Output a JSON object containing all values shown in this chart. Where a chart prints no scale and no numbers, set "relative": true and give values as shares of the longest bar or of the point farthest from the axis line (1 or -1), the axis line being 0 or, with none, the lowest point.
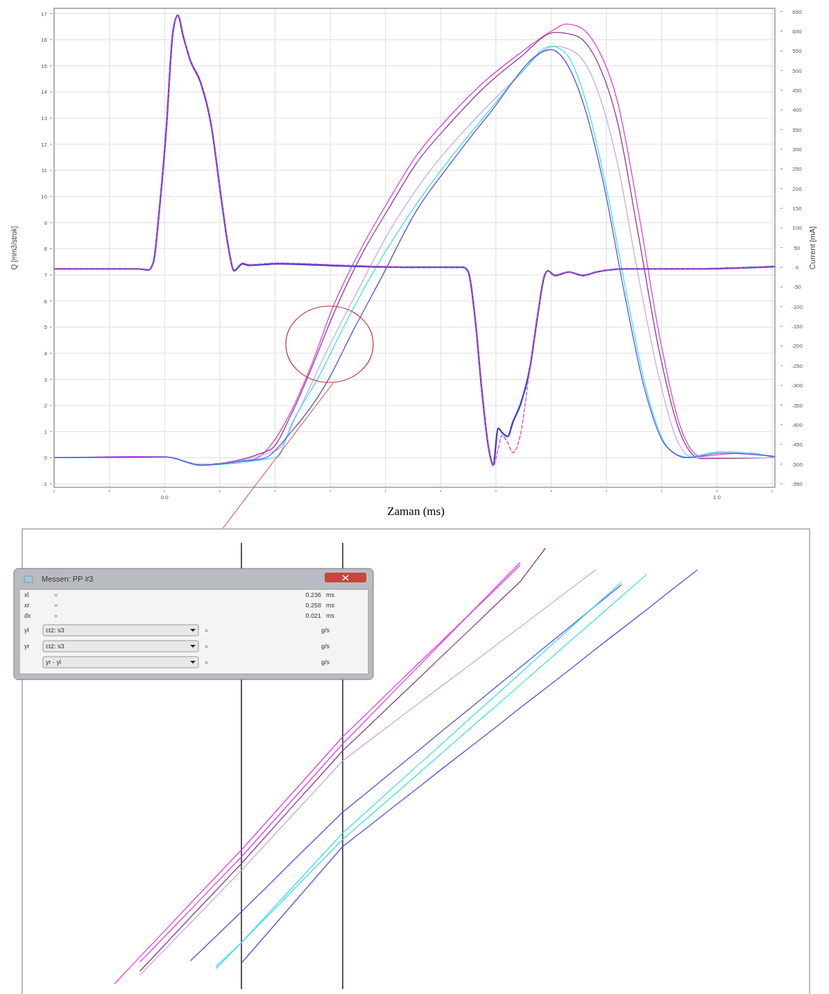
{
  "chart_data": [
    {
      "type": "line",
      "xlabel": "Zaman (ms)",
      "ylabel": "Q [mm3/strok]",
      "y2label": "Current [mA]",
      "xlim": [
        -0.2,
        1.105
      ],
      "ylim": [
        -1.13,
        17.2
      ],
      "y2lim": [
        -559,
        658
      ],
      "xticks": [
        {
          "value": -0.2,
          "label": null
        },
        {
          "value": -0.1,
          "label": null
        },
        {
          "value": 0,
          "label": "0.0"
        },
        {
          "value": 0.1,
          "label": null
        },
        {
          "value": 0.2,
          "label": null
        },
        {
          "value": 0.3,
          "label": null
        },
        {
          "value": 0.4,
          "label": null
        },
        {
          "value": 0.5,
          "label": null
        },
        {
          "value": 0.6,
          "label": null
        },
        {
          "value": 0.7,
          "label": null
        },
        {
          "value": 0.8,
          "label": null
        },
        {
          "value": 0.9,
          "label": null
        },
        {
          "value": 1,
          "label": "1.0"
        },
        {
          "value": 1.1,
          "label": null
        }
      ],
      "yticks": [
        -1,
        0,
        1,
        2,
        3,
        4,
        5,
        6,
        7,
        8,
        9,
        10,
        11,
        12,
        13,
        14,
        15,
        16,
        17
      ],
      "y2ticks": [
        -550,
        -500,
        -450,
        -400,
        -350,
        -300,
        -250,
        -200,
        -150,
        -100,
        -50,
        0,
        50,
        100,
        150,
        200,
        250,
        300,
        350,
        400,
        450,
        500,
        550,
        600,
        650
      ],
      "grid": true,
      "series": [
        {
          "color": "#e040e0",
          "x": [
            -0.2,
            -0.048,
            0.003,
            0.065,
            0.128,
            0.166,
            0.191,
            0.229,
            0.267,
            0.304,
            0.355,
            0.405,
            0.455,
            0.518,
            0.581,
            0.644,
            0.707,
            0.726,
            0.745,
            0.782,
            0.82,
            0.858,
            0.896,
            0.933,
            0.971,
            1.009,
            1.059,
            1.105
          ],
          "values": [
            0,
            0.05,
            0.03,
            -0.26,
            -0.16,
            -0.03,
            0.45,
            1.77,
            3.61,
            5.73,
            7.97,
            9.82,
            11.53,
            13.11,
            14.43,
            15.49,
            16.41,
            16.6,
            16.54,
            15.75,
            13.64,
            9.42,
            4.67,
            1.24,
            0.05,
            0.13,
            0.18,
            0
          ]
        },
        {
          "color": "#8b3a8b",
          "x": [
            -0.2,
            0.003,
            0.065,
            0.191,
            0.229,
            0.267,
            0.305,
            0.355,
            0.406,
            0.456,
            0.519,
            0.581,
            0.644,
            0.707,
            0.745,
            0.782,
            0.82,
            0.857,
            0.895,
            0.933,
            0.97,
            1.105
          ],
          "values": [
            0,
            0.03,
            -0.26,
            0.3,
            1.64,
            3.48,
            5.46,
            7.7,
            9.55,
            11.27,
            12.85,
            14.22,
            15.33,
            16.28,
            16.15,
            15.22,
            12.85,
            8.63,
            4.14,
            0.98,
            -0.03,
            0
          ]
        },
        {
          "color": "#c8a8e8",
          "x": [
            -0.2,
            0.003,
            0.065,
            0.204,
            0.242,
            0.292,
            0.343,
            0.406,
            0.481,
            0.557,
            0.632,
            0.707,
            0.745,
            0.782,
            0.82,
            0.857,
            0.895,
            0.933,
            0.958,
            1.105
          ],
          "values": [
            0,
            0.03,
            -0.26,
            0.3,
            1.77,
            4.01,
            6.12,
            8.63,
            11,
            12.85,
            14.43,
            15.75,
            15.49,
            14.17,
            11.27,
            7.04,
            3.09,
            0.45,
            0,
            0
          ]
        },
        {
          "color": "#40e0e8",
          "x": [
            -0.2,
            0.003,
            0.065,
            0.204,
            0.229,
            0.279,
            0.329,
            0.38,
            0.455,
            0.518,
            0.581,
            0.644,
            0.7,
            0.726,
            0.763,
            0.801,
            0.839,
            0.876,
            0.914,
            0.946,
            1.008,
            1.105
          ],
          "values": [
            0,
            0.03,
            -0.28,
            0.02,
            1.24,
            3.09,
            5.2,
            7.18,
            9.68,
            11.48,
            13.11,
            14.7,
            15.75,
            15.49,
            13.64,
            10.21,
            5.99,
            2.3,
            0.32,
            0.03,
            0.24,
            0.05
          ]
        },
        {
          "color": "#5050e0",
          "x": [
            -0.2,
            0.003,
            0.065,
            0.141,
            0.179,
            0.229,
            0.292,
            0.343,
            0.393,
            0.455,
            0.518,
            0.581,
            0.7,
            0.719,
            0.757,
            0.795,
            0.833,
            0.87,
            0.908,
            0.946,
            1.008,
            1.105
          ],
          "values": [
            0,
            0.03,
            -0.29,
            -0.13,
            -0.03,
            0.98,
            2.82,
            4.93,
            6.91,
            9.42,
            11.27,
            12.98,
            15.62,
            15.36,
            13.64,
            10.47,
            6.25,
            2.56,
            0.45,
            0,
            0.18,
            0.05
          ]
        },
        {
          "color": "#4040d0",
          "axis": "y2",
          "x": [
            -0.2,
            -0.048,
            -0.029,
            -0.02,
            -0.01,
            0.003,
            0.015,
            0.024,
            0.034,
            0.047,
            0.065,
            0.084,
            0.103,
            0.116,
            0.126,
            0.141,
            0.153,
            0.204,
            0.33,
            0.455,
            0.541,
            0.55,
            0.562,
            0.575,
            0.587,
            0.595,
            0.604,
            0.611,
            0.621,
            0.631,
            0.644,
            0.662,
            0.675,
            0.688,
            0.694,
            0.707,
            0.732,
            0.757,
            0.782,
            0.833,
            0.958,
            1.105
          ],
          "values": [
            -4,
            -4,
            -7,
            14,
            138,
            349,
            596,
            640,
            586,
            524,
            471,
            365,
            171,
            47,
            -9,
            9,
            5,
            9,
            3,
            0,
            0,
            -12,
            -127,
            -321,
            -462,
            -501,
            -409,
            -420,
            -430,
            -392,
            -350,
            -251,
            -127,
            -21,
            -9,
            -21,
            -12,
            -21,
            -12,
            -4,
            -4,
            2
          ]
        },
        {
          "color": "#e040c0",
          "axis": "y2",
          "line_style": "dashed",
          "x": [
            -0.2,
            -0.048,
            -0.029,
            -0.02,
            -0.01,
            0.003,
            0.015,
            0.024,
            0.034,
            0.047,
            0.065,
            0.084,
            0.103,
            0.116,
            0.126,
            0.141,
            0.153,
            0.204,
            0.33,
            0.455,
            0.541,
            0.55,
            0.562,
            0.575,
            0.587,
            0.595,
            0.604,
            0.611,
            0.621,
            0.631,
            0.644,
            0.662,
            0.675,
            0.688,
            0.694,
            0.707,
            0.732,
            0.757,
            0.782,
            0.833,
            0.958,
            1.105
          ],
          "values": [
            -4,
            -4,
            -7,
            14,
            138,
            349,
            596,
            642,
            588,
            526,
            473,
            367,
            173,
            49,
            -7,
            11,
            7,
            11,
            5,
            0,
            0,
            -12,
            -127,
            -321,
            -462,
            -506,
            -462,
            -427,
            -445,
            -471,
            -427,
            -251,
            -127,
            -21,
            -9,
            -21,
            -12,
            -21,
            -12,
            -4,
            -4,
            2
          ]
        }
      ]
    },
    {
      "type": "line",
      "relative": true,
      "categories": [
        null,
        null,
        null,
        null,
        null,
        null,
        null,
        null,
        null,
        null,
        null,
        null,
        null,
        null,
        null,
        null,
        null,
        null,
        null,
        null,
        null,
        null,
        null,
        null,
        null,
        null,
        null,
        null,
        null,
        null,
        null
      ],
      "annotations": [
        "Messen: PP #3",
        "xl",
        "=",
        "0.236",
        "ms",
        "xr",
        "=",
        "0.258",
        "ms",
        "dx",
        "=",
        "0.021",
        "ms",
        "yl",
        "ct2: s3",
        "=",
        "g/s",
        "yr",
        "ct2: s3",
        "=",
        "g/s",
        "yr - yl",
        "=",
        "g/s"
      ],
      "series": [
        {
          "color": "#e040e0",
          "values": [
            null,
            null,
            null,
            0,
            0.062,
            0.123,
            0.185,
            0.246,
            0.307,
            0.372,
            0.437,
            0.502,
            0.567,
            0.623,
            0.68,
            0.736,
            0.792,
            0.848,
            0.904,
            0.961,
            null,
            null,
            null,
            null,
            null,
            null,
            null,
            null,
            null,
            null,
            null
          ]
        },
        {
          "color": "#e040e0",
          "values": [
            null,
            null,
            null,
            null,
            0.05,
            0.11,
            0.17,
            0.231,
            0.291,
            0.356,
            0.421,
            0.486,
            0.551,
            0.61,
            0.67,
            0.729,
            0.789,
            0.848,
            0.908,
            0.967,
            null,
            null,
            null,
            null,
            null,
            null,
            null,
            null,
            null,
            null,
            null
          ]
        },
        {
          "color": "#8b3a8b",
          "values": [
            null,
            null,
            null,
            null,
            0.029,
            0.091,
            0.153,
            0.214,
            0.276,
            0.341,
            0.406,
            0.47,
            0.535,
            0.59,
            0.646,
            0.701,
            0.757,
            0.812,
            0.868,
            0.923,
            1,
            null,
            null,
            null,
            null,
            null,
            null,
            null,
            null,
            null,
            null
          ]
        },
        {
          "color": "#c8a8e8",
          "values": [
            null,
            null,
            null,
            null,
            0.02,
            0.08,
            0.14,
            0.2,
            0.26,
            0.323,
            0.386,
            0.449,
            0.512,
            0.556,
            0.6,
            0.644,
            0.688,
            0.731,
            0.775,
            0.819,
            0.863,
            0.907,
            0.951,
            null,
            null,
            null,
            null,
            null,
            null,
            null,
            null
          ]
        },
        {
          "color": "#5050e0",
          "values": [
            null,
            null,
            null,
            null,
            null,
            null,
            0.053,
            0.109,
            0.165,
            0.222,
            0.28,
            0.337,
            0.394,
            0.441,
            0.489,
            0.536,
            0.584,
            0.631,
            0.679,
            0.726,
            0.774,
            0.821,
            0.869,
            0.916,
            null,
            null,
            null,
            null,
            null,
            null,
            null
          ]
        },
        {
          "color": "#40e0e8",
          "values": [
            null,
            null,
            null,
            null,
            null,
            null,
            null,
            0.04,
            0.094,
            0.157,
            0.22,
            0.283,
            0.346,
            0.398,
            0.451,
            0.503,
            0.555,
            0.608,
            0.66,
            0.712,
            0.765,
            0.817,
            0.87,
            0.922,
            null,
            null,
            null,
            null,
            null,
            null,
            null
          ]
        },
        {
          "color": "#40e0e8",
          "values": [
            null,
            null,
            null,
            null,
            null,
            null,
            null,
            0.035,
            0.094,
            0.153,
            0.212,
            0.272,
            0.331,
            0.382,
            0.432,
            0.483,
            0.534,
            0.585,
            0.635,
            0.686,
            0.737,
            0.788,
            0.838,
            0.889,
            0.94,
            null,
            null,
            null,
            null,
            null,
            null
          ]
        },
        {
          "color": "#5050e0",
          "values": [
            null,
            null,
            null,
            null,
            null,
            null,
            null,
            null,
            0.047,
            0.114,
            0.181,
            0.248,
            0.315,
            0.36,
            0.406,
            0.451,
            0.497,
            0.542,
            0.587,
            0.633,
            0.678,
            0.723,
            0.769,
            0.814,
            0.859,
            0.905,
            0.95,
            null,
            null,
            null,
            null
          ]
        }
      ]
    }
  ]
}
